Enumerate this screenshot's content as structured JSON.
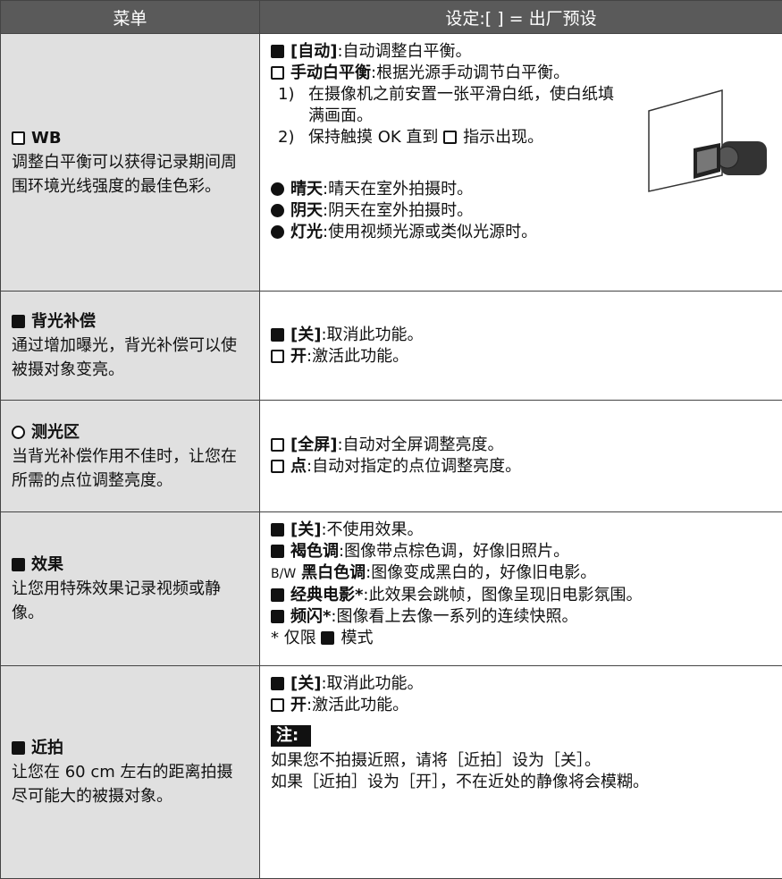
{
  "header": {
    "menu": "菜单",
    "settings": "设定:[ ] = 出厂预设"
  },
  "rows": [
    {
      "title": "WB",
      "description": "调整白平衡可以获得记录期间周围环境光线强度的最佳色彩。",
      "options": [
        {
          "term": "[自动]",
          "text": ":自动调整白平衡。"
        },
        {
          "term": "手动白平衡",
          "text": ":根据光源手动调节白平衡。"
        }
      ],
      "steps": [
        {
          "number": "1)",
          "text": "在摄像机之前安置一张平滑白纸，使白纸填满画面。"
        },
        {
          "number": "2)",
          "text": "保持触摸 OK 直到",
          "text_after": "指示出现。"
        }
      ],
      "more_options": [
        {
          "term": "晴天",
          "text": ":晴天在室外拍摄时。"
        },
        {
          "term": "阴天",
          "text": ":阴天在室外拍摄时。"
        },
        {
          "term": "灯光",
          "text": ":使用视频光源或类似光源时。"
        }
      ]
    },
    {
      "title": "背光补偿",
      "description": "通过增加曝光，背光补偿可以使被摄对象变亮。",
      "options": [
        {
          "term": "[关]",
          "text": ":取消此功能。"
        },
        {
          "term": "开",
          "text": ":激活此功能。"
        }
      ]
    },
    {
      "title": "测光区",
      "description": "当背光补偿作用不佳时，让您在所需的点位调整亮度。",
      "options": [
        {
          "term": "[全屏]",
          "text": ":自动对全屏调整亮度。"
        },
        {
          "term": "点",
          "text": ":自动对指定的点位调整亮度。"
        }
      ]
    },
    {
      "title": "效果",
      "description": "让您用特殊效果记录视频或静像。",
      "options": [
        {
          "term": "[关]",
          "text": ":不使用效果。"
        },
        {
          "term": "褐色调",
          "text": ":图像带点棕色调，好像旧照片。"
        },
        {
          "prefix": "B/W",
          "term": "黑白色调",
          "text": ":图像变成黑白的，好像旧电影。"
        },
        {
          "term": "经典电影*",
          "text": ":此效果会跳帧，图像呈现旧电影氛围。"
        },
        {
          "term": "频闪*",
          "text": ":图像看上去像一系列的连续快照。"
        }
      ],
      "footnote": {
        "text": "* 仅限",
        "text_after": "模式"
      }
    },
    {
      "title": "近拍",
      "description": "让您在 60 cm 左右的距离拍摄尽可能大的被摄对象。",
      "options": [
        {
          "term": "[关]",
          "text": ":取消此功能。"
        },
        {
          "term": "开",
          "text": ":激活此功能。"
        }
      ],
      "note": {
        "label": "注:",
        "lines": [
          "如果您不拍摄近照，请将［近拍］设为［关］。",
          "如果［近拍］设为［开］，不在近处的静像将会模糊。"
        ]
      }
    }
  ]
}
